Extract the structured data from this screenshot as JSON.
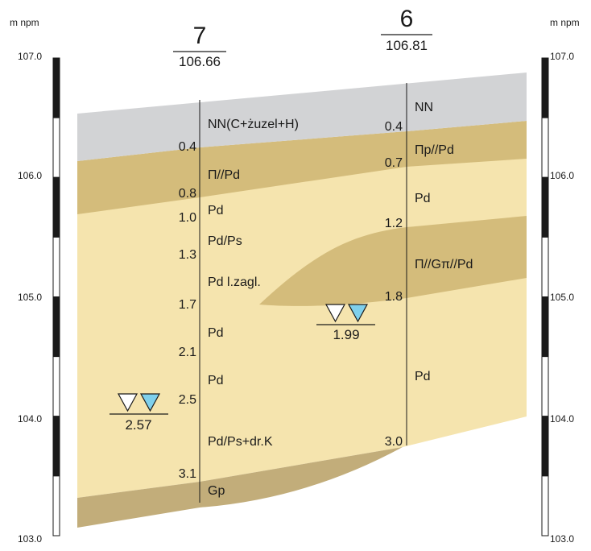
{
  "scale": {
    "unit_left": "m npm",
    "unit_right": "m npm",
    "ticks": [
      {
        "value": 107.0,
        "label": "107.0"
      },
      {
        "value": 106.0,
        "label": "106.0"
      },
      {
        "value": 105.0,
        "label": "105.0"
      },
      {
        "value": 104.0,
        "label": "104.0"
      },
      {
        "value": 103.0,
        "label": "103.0"
      }
    ],
    "range": [
      103.0,
      107.0
    ]
  },
  "colors": {
    "fill_nn": "#d2d3d5",
    "fill_tan": "#d4bc7b",
    "fill_sand": "#f5e4ae",
    "fill_gp": "#c2ad7a",
    "water_fill": "#7fd0ec"
  },
  "boreholes": [
    {
      "number": "7",
      "elevation": "106.66",
      "depth_labels": [
        "0.4",
        "0.8",
        "1.0",
        "1.3",
        "1.7",
        "2.1",
        "2.5",
        "3.1"
      ],
      "layer_labels": [
        "NN(C+żuzel+H)",
        "Π//Pd",
        "Pd",
        "Pd/Ps",
        "Pd l.zagl.",
        "Pd",
        "Pd",
        "Pd/Ps+dr.K",
        "Gp"
      ],
      "water_table": "2.57"
    },
    {
      "number": "6",
      "elevation": "106.81",
      "depth_labels": [
        "0.4",
        "0.7",
        "1.2",
        "1.8",
        "3.0"
      ],
      "layer_labels": [
        "NN",
        "Пр//Pd",
        "Pd",
        "Π//Gπ//Pd",
        "Pd"
      ],
      "water_table": "1.99"
    }
  ]
}
